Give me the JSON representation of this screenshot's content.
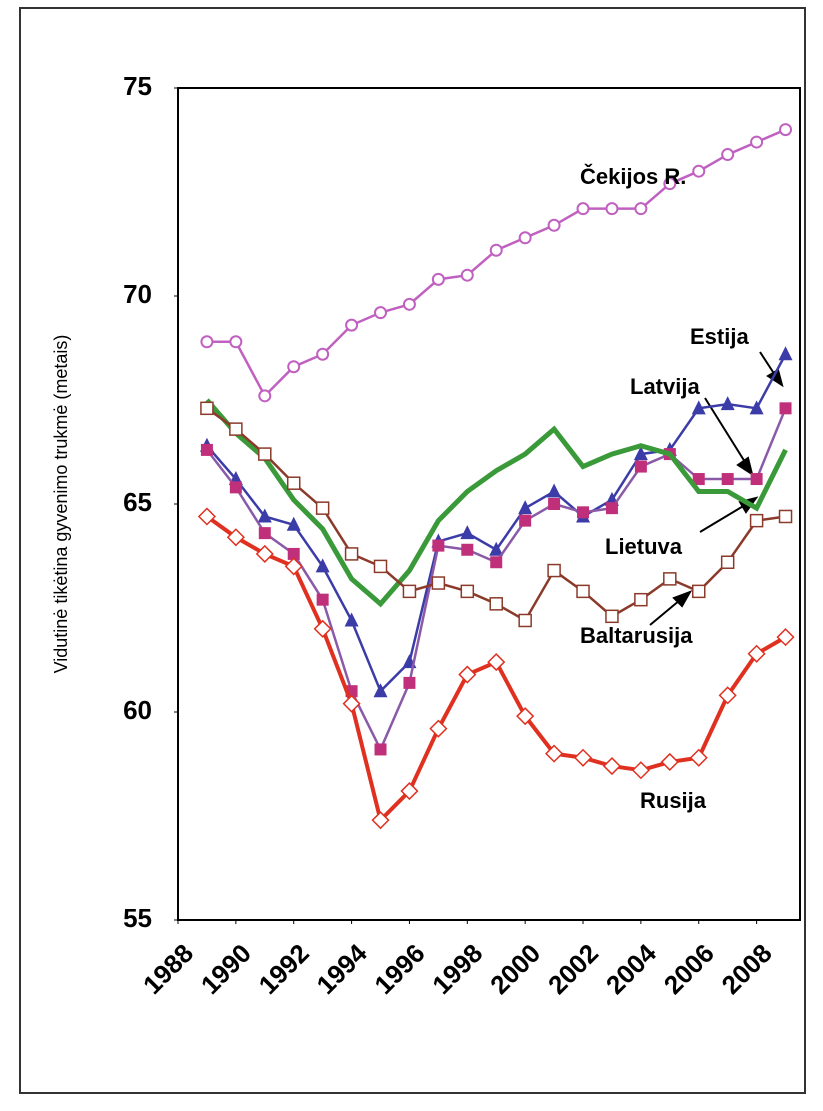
{
  "chart_data": {
    "type": "line",
    "y_label": "Vidutinė tikėtina gyvenimo trukmė (metais)",
    "x": [
      1989,
      1990,
      1991,
      1992,
      1993,
      1994,
      1995,
      1996,
      1997,
      1998,
      1999,
      2000,
      2001,
      2002,
      2003,
      2004,
      2005,
      2006,
      2007,
      2008,
      2009
    ],
    "xlim": [
      1988,
      2009.5
    ],
    "xticks": [
      1988,
      1990,
      1992,
      1994,
      1996,
      1998,
      2000,
      2002,
      2004,
      2006,
      2008
    ],
    "ylim": [
      55,
      75
    ],
    "yticks": [
      55,
      60,
      65,
      70,
      75
    ],
    "series": [
      {
        "name": "Čekijos R.",
        "color": "#c060c0",
        "marker": "circle",
        "values": [
          68.9,
          68.9,
          67.6,
          68.3,
          68.6,
          69.3,
          69.6,
          69.8,
          70.4,
          70.5,
          71.1,
          71.4,
          71.7,
          72.1,
          72.1,
          72.1,
          72.7,
          73.0,
          73.4,
          73.7,
          74.0
        ]
      },
      {
        "name": "Estija",
        "color": "#3c3ca8",
        "marker": "triangle",
        "values": [
          66.4,
          65.6,
          64.7,
          64.5,
          63.5,
          62.2,
          60.5,
          61.2,
          64.1,
          64.3,
          63.9,
          64.9,
          65.3,
          64.7,
          65.1,
          66.2,
          66.3,
          67.3,
          67.4,
          67.3,
          68.6
        ]
      },
      {
        "name": "Latvija",
        "color": "#c0307a",
        "marker": "square",
        "values": [
          66.3,
          65.4,
          64.3,
          63.8,
          62.7,
          60.5,
          59.1,
          60.7,
          64.0,
          63.9,
          63.6,
          64.6,
          65.0,
          64.8,
          64.9,
          65.9,
          66.2,
          65.6,
          65.6,
          65.6,
          67.3
        ]
      },
      {
        "name": "Lietuva",
        "color": "#3a9a3a",
        "marker": "none",
        "values": [
          67.5,
          66.7,
          66.1,
          65.1,
          64.4,
          63.2,
          62.6,
          63.4,
          64.6,
          65.3,
          65.8,
          66.2,
          66.8,
          65.9,
          66.2,
          66.4,
          66.2,
          65.3,
          65.3,
          64.9,
          66.3
        ]
      },
      {
        "name": "Baltarusija",
        "color": "#8b3a2a",
        "marker": "square-open",
        "values": [
          67.3,
          66.8,
          66.2,
          65.5,
          64.9,
          63.8,
          63.5,
          62.9,
          63.1,
          62.9,
          62.6,
          62.2,
          63.4,
          62.9,
          62.3,
          62.7,
          63.2,
          62.9,
          63.6,
          64.6,
          64.7
        ]
      },
      {
        "name": "Rusija",
        "color": "#e03020",
        "marker": "diamond",
        "values": [
          64.7,
          64.2,
          63.8,
          63.5,
          62.0,
          60.2,
          57.4,
          58.1,
          59.6,
          60.9,
          61.2,
          59.9,
          59.0,
          58.9,
          58.7,
          58.6,
          58.8,
          58.9,
          60.4,
          61.4,
          61.8
        ]
      }
    ]
  }
}
